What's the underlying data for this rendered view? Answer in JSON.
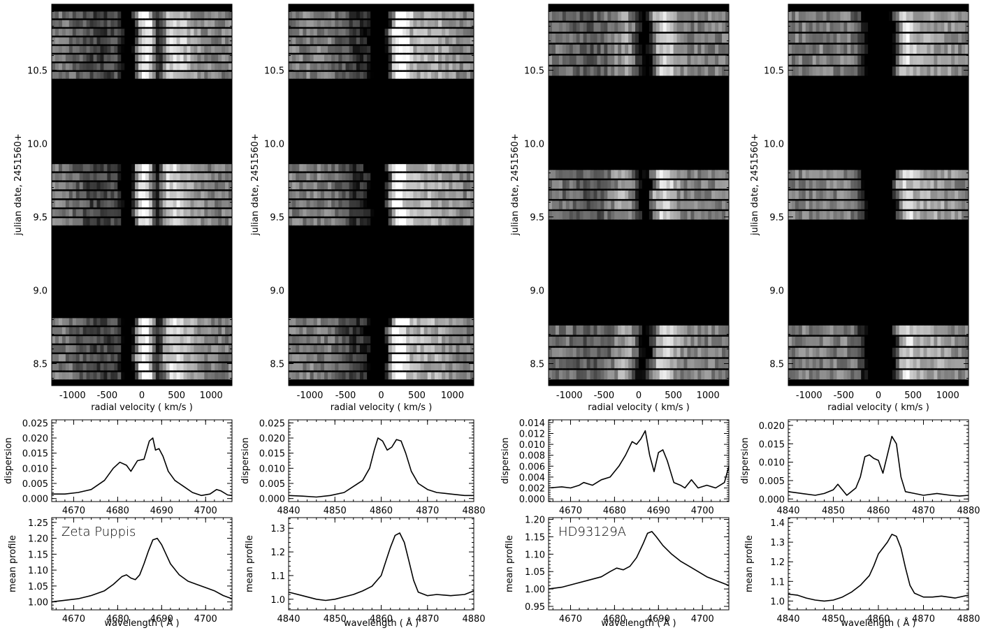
{
  "figure": {
    "background": "#ffffff",
    "ink": "#000000"
  },
  "columns": [
    {
      "id": "zeta-pup-heii",
      "star_label": "Zeta Puppis",
      "dynamic": {
        "xlabel": "radial velocity ( km/s )",
        "ylabel": "julian date, 2451560+",
        "xlim": [
          -1300,
          1300
        ],
        "ylim": [
          8.35,
          10.95
        ],
        "xticks": [
          -1000,
          -500,
          0,
          500,
          1000
        ],
        "yticks": [
          8.5,
          9.0,
          9.5,
          10.0,
          10.5
        ],
        "strip_groups": [
          {
            "from": 8.38,
            "to": 8.81,
            "count": 7
          },
          {
            "from": 9.43,
            "to": 9.86,
            "count": 7
          },
          {
            "from": 10.43,
            "to": 10.9,
            "count": 8
          }
        ],
        "pattern": [
          {
            "v": -180,
            "w": 80,
            "a": -0.9
          },
          {
            "v": 230,
            "w": 70,
            "a": -0.8
          },
          {
            "v": 60,
            "w": 140,
            "a": 0.5
          },
          {
            "v": 450,
            "w": 220,
            "a": 0.35
          },
          {
            "v": -600,
            "w": 250,
            "a": -0.25
          }
        ]
      },
      "dispersion": {
        "ylabel": "dispersion",
        "xlim": [
          4665,
          4706
        ],
        "ylim": [
          -0.001,
          0.026
        ],
        "xticks": [
          4670,
          4680,
          4690,
          4700
        ],
        "yticks": [
          0.0,
          0.005,
          0.01,
          0.015,
          0.02,
          0.025
        ],
        "ytick_labels": [
          "0.000",
          "0.005",
          "0.010",
          "0.015",
          "0.020",
          "0.025"
        ],
        "x": [
          4665,
          4668,
          4671,
          4674,
          4677,
          4679,
          4680.5,
          4682,
          4683,
          4684.5,
          4686,
          4687.2,
          4688,
          4688.6,
          4689.4,
          4690.3,
          4691.5,
          4693,
          4695,
          4697,
          4699,
          4701,
          4702.5,
          4703.5,
          4705,
          4706
        ],
        "y": [
          0.0015,
          0.0015,
          0.002,
          0.003,
          0.006,
          0.01,
          0.012,
          0.011,
          0.009,
          0.0125,
          0.013,
          0.019,
          0.02,
          0.016,
          0.0165,
          0.014,
          0.009,
          0.006,
          0.004,
          0.002,
          0.001,
          0.0015,
          0.003,
          0.0025,
          0.0012,
          0.001
        ]
      },
      "profile": {
        "ylabel": "mean profile",
        "xlabel": "wavelength ( Å )",
        "xlim": [
          4665,
          4706
        ],
        "ylim": [
          0.975,
          1.265
        ],
        "xticks": [
          4670,
          4680,
          4690,
          4700
        ],
        "yticks": [
          1.0,
          1.05,
          1.1,
          1.15,
          1.2,
          1.25
        ],
        "ytick_labels": [
          "1.00",
          "1.05",
          "1.10",
          "1.15",
          "1.20",
          "1.25"
        ],
        "x": [
          4665,
          4668,
          4671,
          4674,
          4677,
          4679,
          4681,
          4682,
          4683,
          4684,
          4685,
          4686,
          4687,
          4688,
          4689,
          4690,
          4691,
          4692,
          4694,
          4696,
          4698,
          4700,
          4702,
          4704,
          4706
        ],
        "y": [
          1.0,
          1.005,
          1.01,
          1.02,
          1.035,
          1.055,
          1.08,
          1.085,
          1.075,
          1.07,
          1.085,
          1.12,
          1.16,
          1.195,
          1.2,
          1.18,
          1.15,
          1.12,
          1.085,
          1.065,
          1.055,
          1.045,
          1.035,
          1.02,
          1.01
        ]
      }
    },
    {
      "id": "zeta-pup-hbeta",
      "star_label": "",
      "dynamic": {
        "xlabel": "radial velocity ( km/s )",
        "ylabel": "julian date, 2451560+",
        "xlim": [
          -1300,
          1300
        ],
        "ylim": [
          8.35,
          10.95
        ],
        "xticks": [
          -1000,
          -500,
          0,
          500,
          1000
        ],
        "yticks": [
          8.5,
          9.0,
          9.5,
          10.0,
          10.5
        ],
        "strip_groups": [
          {
            "from": 8.38,
            "to": 8.81,
            "count": 7
          },
          {
            "from": 9.43,
            "to": 9.86,
            "count": 7
          },
          {
            "from": 10.43,
            "to": 10.9,
            "count": 8
          }
        ],
        "pattern": [
          {
            "v": -20,
            "w": 90,
            "a": -0.9
          },
          {
            "v": 250,
            "w": 90,
            "a": 0.6
          },
          {
            "v": -300,
            "w": 200,
            "a": -0.3
          },
          {
            "v": 650,
            "w": 250,
            "a": 0.2
          }
        ]
      },
      "dispersion": {
        "ylabel": "dispersion",
        "xlim": [
          4840,
          4880
        ],
        "ylim": [
          -0.001,
          0.026
        ],
        "xticks": [
          4840,
          4850,
          4860,
          4870,
          4880
        ],
        "yticks": [
          0.0,
          0.005,
          0.01,
          0.015,
          0.02,
          0.025
        ],
        "ytick_labels": [
          "0.000",
          "0.005",
          "0.010",
          "0.015",
          "0.020",
          "0.025"
        ],
        "x": [
          4840,
          4843,
          4846,
          4849,
          4852,
          4854,
          4856,
          4857.5,
          4858.5,
          4859.3,
          4860.3,
          4861.3,
          4862.3,
          4863.3,
          4864.3,
          4865.3,
          4866.5,
          4868,
          4870,
          4872,
          4875,
          4878,
          4880
        ],
        "y": [
          0.001,
          0.0008,
          0.0005,
          0.001,
          0.002,
          0.004,
          0.006,
          0.01,
          0.016,
          0.02,
          0.019,
          0.016,
          0.017,
          0.0195,
          0.019,
          0.015,
          0.009,
          0.005,
          0.003,
          0.002,
          0.0015,
          0.001,
          0.001
        ]
      },
      "profile": {
        "ylabel": "mean profile",
        "xlabel": "wavelength ( Å )",
        "xlim": [
          4840,
          4880
        ],
        "ylim": [
          0.955,
          1.345
        ],
        "xticks": [
          4840,
          4850,
          4860,
          4870,
          4880
        ],
        "yticks": [
          1.0,
          1.1,
          1.2,
          1.3
        ],
        "ytick_labels": [
          "1.0",
          "1.1",
          "1.2",
          "1.3"
        ],
        "x": [
          4840,
          4843,
          4846,
          4848,
          4850,
          4852,
          4854,
          4856,
          4858,
          4860,
          4861,
          4862,
          4863,
          4864,
          4865,
          4866,
          4867,
          4868,
          4870,
          4872,
          4875,
          4878,
          4880
        ],
        "y": [
          1.03,
          1.015,
          1.0,
          0.995,
          1.0,
          1.01,
          1.02,
          1.035,
          1.055,
          1.1,
          1.16,
          1.22,
          1.27,
          1.28,
          1.24,
          1.16,
          1.08,
          1.03,
          1.015,
          1.02,
          1.015,
          1.02,
          1.035
        ]
      }
    },
    {
      "id": "hd93129a-heii",
      "star_label": "HD93129A",
      "dynamic": {
        "xlabel": "radial velocity ( km/s )",
        "ylabel": "julian date, 2451560+",
        "xlim": [
          -1300,
          1300
        ],
        "ylim": [
          8.35,
          10.95
        ],
        "xticks": [
          -1000,
          -500,
          0,
          500,
          1000
        ],
        "yticks": [
          8.5,
          9.0,
          9.5,
          10.0,
          10.5
        ],
        "strip_groups": [
          {
            "from": 8.38,
            "to": 8.76,
            "count": 5
          },
          {
            "from": 9.47,
            "to": 9.82,
            "count": 5
          },
          {
            "from": 10.45,
            "to": 10.9,
            "count": 6
          }
        ],
        "pattern": [
          {
            "v": 80,
            "w": 120,
            "a": -0.85
          },
          {
            "v": 300,
            "w": 140,
            "a": 0.45
          },
          {
            "v": -100,
            "w": 160,
            "a": 0.3
          },
          {
            "v": -700,
            "w": 300,
            "a": -0.15
          }
        ]
      },
      "dispersion": {
        "ylabel": "dispersion",
        "xlim": [
          4665,
          4706
        ],
        "ylim": [
          -0.0005,
          0.0145
        ],
        "xticks": [
          4670,
          4680,
          4690,
          4700
        ],
        "yticks": [
          0.0,
          0.002,
          0.004,
          0.006,
          0.008,
          0.01,
          0.012,
          0.014
        ],
        "ytick_labels": [
          "0.000",
          "0.002",
          "0.004",
          "0.006",
          "0.008",
          "0.010",
          "0.012",
          "0.014"
        ],
        "x": [
          4665,
          4668,
          4670,
          4672,
          4673,
          4675,
          4677,
          4679,
          4681,
          4682.5,
          4684,
          4685,
          4686,
          4687,
          4688,
          4689,
          4690,
          4691,
          4692,
          4693.5,
          4695,
          4696,
          4697.5,
          4699,
          4701,
          4703,
          4705,
          4706
        ],
        "y": [
          0.002,
          0.0022,
          0.002,
          0.0025,
          0.003,
          0.0025,
          0.0035,
          0.004,
          0.006,
          0.008,
          0.0105,
          0.01,
          0.011,
          0.0125,
          0.008,
          0.005,
          0.0085,
          0.009,
          0.007,
          0.003,
          0.0025,
          0.002,
          0.0035,
          0.002,
          0.0025,
          0.002,
          0.003,
          0.006
        ]
      },
      "profile": {
        "ylabel": "mean profile",
        "xlabel": "wavelength ( Å )",
        "xlim": [
          4665,
          4706
        ],
        "ylim": [
          0.94,
          1.205
        ],
        "xticks": [
          4670,
          4680,
          4690,
          4700
        ],
        "yticks": [
          0.95,
          1.0,
          1.05,
          1.1,
          1.15,
          1.2
        ],
        "ytick_labels": [
          "0.95",
          "1.00",
          "1.05",
          "1.10",
          "1.15",
          "1.20"
        ],
        "x": [
          4665,
          4668,
          4671,
          4674,
          4677,
          4679,
          4680.5,
          4682,
          4683.5,
          4685,
          4686.5,
          4687.5,
          4688.5,
          4689.5,
          4691,
          4693,
          4695,
          4697,
          4699,
          4701,
          4703,
          4705,
          4706
        ],
        "y": [
          1.0,
          1.005,
          1.015,
          1.025,
          1.035,
          1.05,
          1.06,
          1.055,
          1.065,
          1.09,
          1.13,
          1.16,
          1.165,
          1.15,
          1.125,
          1.1,
          1.08,
          1.065,
          1.05,
          1.035,
          1.025,
          1.015,
          1.01
        ]
      }
    },
    {
      "id": "hd93129a-hbeta",
      "star_label": "",
      "dynamic": {
        "xlabel": "radial velocity ( km/s )",
        "ylabel": "julian date, 2451560+",
        "xlim": [
          -1300,
          1300
        ],
        "ylim": [
          8.35,
          10.95
        ],
        "xticks": [
          -1000,
          -500,
          0,
          500,
          1000
        ],
        "yticks": [
          8.5,
          9.0,
          9.5,
          10.0,
          10.5
        ],
        "strip_groups": [
          {
            "from": 8.38,
            "to": 8.76,
            "count": 5
          },
          {
            "from": 9.47,
            "to": 9.82,
            "count": 5
          },
          {
            "from": 10.45,
            "to": 10.9,
            "count": 6
          }
        ],
        "pattern": [
          {
            "v": 150,
            "w": 130,
            "a": -0.9
          },
          {
            "v": 330,
            "w": 110,
            "a": 0.5
          },
          {
            "v": -100,
            "w": 120,
            "a": -0.6
          },
          {
            "v": 700,
            "w": 300,
            "a": 0.15
          }
        ]
      },
      "dispersion": {
        "ylabel": "dispersion",
        "xlim": [
          4840,
          4880
        ],
        "ylim": [
          -0.0007,
          0.0215
        ],
        "xticks": [
          4840,
          4850,
          4860,
          4870,
          4880
        ],
        "yticks": [
          0.0,
          0.005,
          0.01,
          0.015,
          0.02
        ],
        "ytick_labels": [
          "0.000",
          "0.005",
          "0.010",
          "0.015",
          "0.020"
        ],
        "x": [
          4840,
          4843,
          4846,
          4848,
          4850,
          4851,
          4852,
          4853,
          4855,
          4856,
          4857,
          4858,
          4859,
          4860,
          4861,
          4862,
          4863,
          4864,
          4865,
          4866,
          4868,
          4870,
          4873,
          4876,
          4878,
          4880
        ],
        "y": [
          0.002,
          0.0015,
          0.001,
          0.0015,
          0.0025,
          0.004,
          0.0025,
          0.001,
          0.003,
          0.006,
          0.0115,
          0.012,
          0.011,
          0.0105,
          0.007,
          0.012,
          0.017,
          0.015,
          0.006,
          0.002,
          0.0015,
          0.001,
          0.0015,
          0.001,
          0.0008,
          0.001
        ]
      },
      "profile": {
        "ylabel": "mean profile",
        "xlabel": "wavelength ( Å )",
        "xlim": [
          4840,
          4880
        ],
        "ylim": [
          0.955,
          1.425
        ],
        "xticks": [
          4840,
          4850,
          4860,
          4870,
          4880
        ],
        "yticks": [
          1.0,
          1.1,
          1.2,
          1.3,
          1.4
        ],
        "ytick_labels": [
          "1.0",
          "1.1",
          "1.2",
          "1.3",
          "1.4"
        ],
        "x": [
          4840,
          4842,
          4844,
          4846,
          4848,
          4850,
          4852,
          4854,
          4856,
          4858,
          4859,
          4860,
          4861,
          4862,
          4863,
          4864,
          4865,
          4866,
          4867,
          4868,
          4870,
          4872,
          4874,
          4877,
          4880
        ],
        "y": [
          1.035,
          1.03,
          1.015,
          1.005,
          1.0,
          1.005,
          1.02,
          1.045,
          1.08,
          1.13,
          1.18,
          1.24,
          1.27,
          1.3,
          1.34,
          1.33,
          1.27,
          1.17,
          1.08,
          1.04,
          1.02,
          1.02,
          1.025,
          1.015,
          1.03
        ]
      }
    }
  ]
}
